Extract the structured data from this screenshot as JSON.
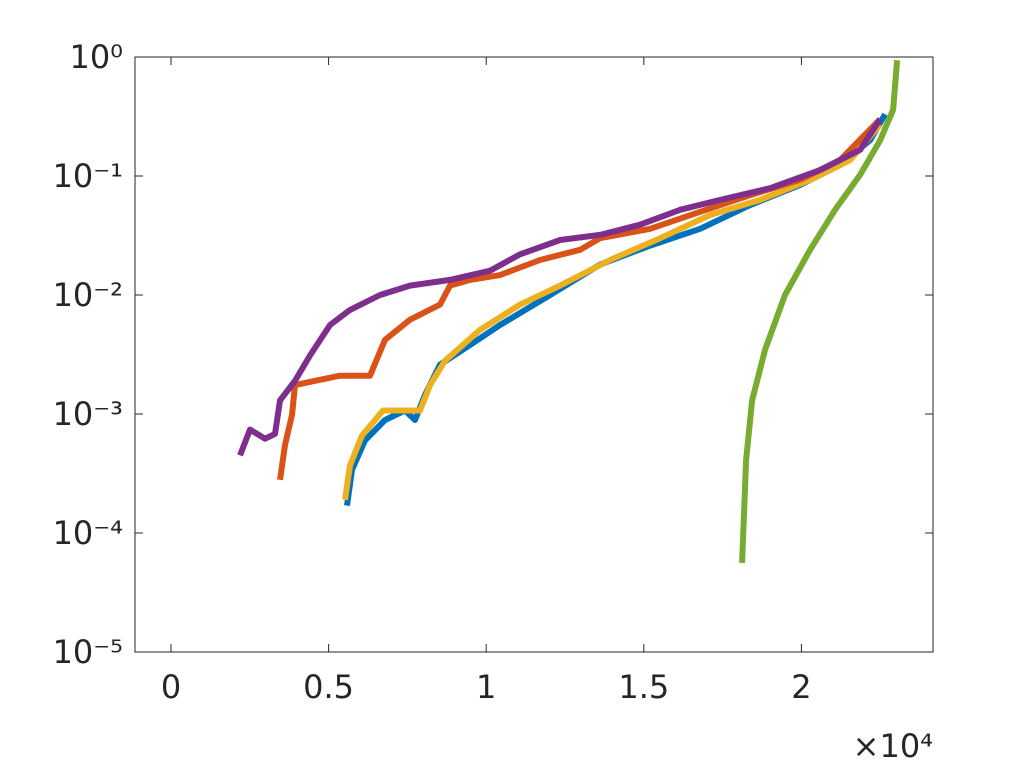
{
  "chart_data": {
    "type": "line",
    "x_multiplier": "×10⁴",
    "xlim": [
      -1142,
      24175
    ],
    "xticks": [
      {
        "value": 0,
        "label": "0"
      },
      {
        "value": 5000,
        "label": "0.5"
      },
      {
        "value": 10000,
        "label": "1"
      },
      {
        "value": 15000,
        "label": "1.5"
      },
      {
        "value": 20000,
        "label": "2"
      }
    ],
    "ylim": [
      1e-05,
      1
    ],
    "y_scale": "log",
    "yticks": [
      {
        "value": 1e-05,
        "label": "10⁻⁵"
      },
      {
        "value": 0.0001,
        "label": "10⁻⁴"
      },
      {
        "value": 0.001,
        "label": "10⁻³"
      },
      {
        "value": 0.01,
        "label": "10⁻²"
      },
      {
        "value": 0.1,
        "label": "10⁻¹"
      },
      {
        "value": 1,
        "label": "10⁰"
      }
    ],
    "grid": false,
    "series": [
      {
        "color": "#0072bd",
        "x": [
          5585,
          5743,
          6156,
          6790,
          7425,
          7742,
          8059,
          8535,
          9487,
          10439,
          12026,
          13612,
          15199,
          16785,
          18372,
          19958,
          21227,
          22180,
          22656
        ],
        "values": [
          0.00017,
          0.00034,
          0.0006,
          0.00089,
          0.00107,
          0.00089,
          0.00145,
          0.0026,
          0.0038,
          0.0056,
          0.01,
          0.018,
          0.026,
          0.036,
          0.057,
          0.084,
          0.124,
          0.2,
          0.33
        ]
      },
      {
        "color": "#edb120",
        "x": [
          5521,
          5680,
          6060,
          6727,
          7425,
          7901,
          8218,
          8694,
          9805,
          11074,
          12343,
          13929,
          15516,
          17103,
          18689,
          20275,
          21545,
          22497
        ],
        "values": [
          0.00019,
          0.00037,
          0.00066,
          0.00107,
          0.00107,
          0.00107,
          0.00175,
          0.0028,
          0.0051,
          0.0083,
          0.012,
          0.0197,
          0.03,
          0.047,
          0.063,
          0.093,
          0.136,
          0.27
        ]
      },
      {
        "color": "#d95319",
        "x": [
          3459,
          3617,
          3839,
          3935,
          4569,
          5362,
          6314,
          6790,
          7583,
          8535,
          8853,
          9487,
          10439,
          11708,
          12978,
          13612,
          15199,
          16785,
          18372,
          19958,
          21227,
          22497
        ],
        "values": [
          0.00028,
          0.00055,
          0.00098,
          0.00175,
          0.0019,
          0.0021,
          0.0021,
          0.0042,
          0.0062,
          0.0083,
          0.012,
          0.0134,
          0.0147,
          0.0197,
          0.024,
          0.03,
          0.036,
          0.05,
          0.069,
          0.093,
          0.136,
          0.3
        ]
      },
      {
        "color": "#77ac30",
        "x": [
          18120,
          18245,
          18435,
          18850,
          19480,
          20275,
          21070,
          21860,
          22500,
          22910,
          23035
        ],
        "values": [
          5.6e-05,
          0.00041,
          0.0013,
          0.0035,
          0.01,
          0.024,
          0.052,
          0.102,
          0.2,
          0.36,
          0.94
        ]
      },
      {
        "color": "#7e2f8e",
        "x": [
          2189,
          2507,
          2983,
          3300,
          3459,
          3935,
          4410,
          5045,
          5680,
          6632,
          7583,
          8853,
          10122,
          11074,
          12343,
          13612,
          14881,
          16151,
          17420,
          19006,
          20593,
          21862,
          22497
        ],
        "values": [
          0.00045,
          0.00074,
          0.00062,
          0.00068,
          0.0013,
          0.0019,
          0.0031,
          0.0056,
          0.0075,
          0.01,
          0.012,
          0.0134,
          0.016,
          0.022,
          0.029,
          0.032,
          0.039,
          0.052,
          0.063,
          0.079,
          0.112,
          0.166,
          0.3
        ]
      }
    ]
  }
}
